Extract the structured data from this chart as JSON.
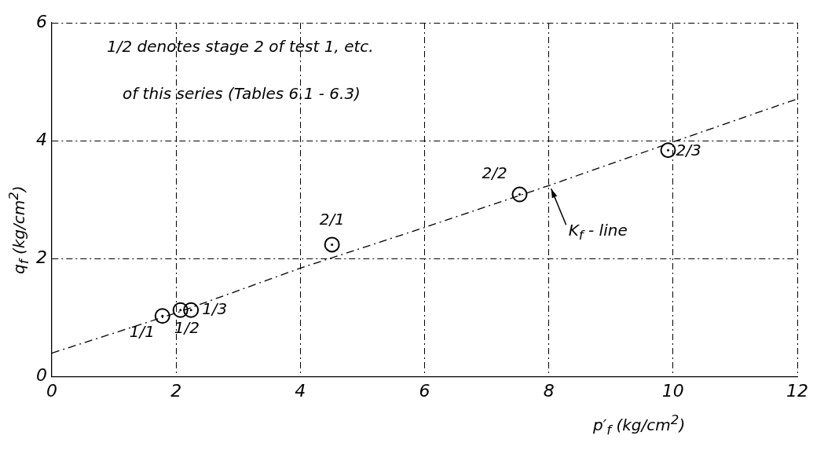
{
  "chart_data": {
    "type": "scatter",
    "xlabel": "p′$_{f}$ (kg/cm$^{2}$)",
    "ylabel": "q$_{f}$ (kg/cm$^{2}$)",
    "xlim": [
      0,
      12
    ],
    "xticks": [
      0,
      2,
      4,
      6,
      8,
      10,
      12
    ],
    "ylim": [
      0,
      6
    ],
    "yticks": [
      0,
      2,
      4,
      6
    ],
    "grid": true,
    "marker": "circle",
    "series": [
      {
        "color": "#000000",
        "x": [
          1.78,
          2.07,
          2.24,
          4.51,
          7.53,
          9.92
        ],
        "values": [
          1.03,
          1.13,
          1.13,
          2.24,
          3.09,
          3.84
        ]
      },
      {
        "type": "line",
        "color": "#000000",
        "line_style": "dashed",
        "marker": "none",
        "x": [
          0,
          2,
          4,
          6,
          8,
          10,
          12
        ],
        "values": [
          0.4,
          1.08,
          1.84,
          2.53,
          3.24,
          3.98,
          4.71
        ]
      }
    ],
    "annotations": [
      "1/2 denotes stage 2 of test 1, etc.",
      "of this series (Tables 6.1 - 6.3)",
      {
        "text": "1/1",
        "x": 1.78,
        "y": 1.03
      },
      {
        "text": "1/2",
        "x": 2.07,
        "y": 1.13
      },
      {
        "text": "1/3",
        "x": 2.24,
        "y": 1.13
      },
      {
        "text": "2/1",
        "x": 4.51,
        "y": 2.24
      },
      {
        "text": "2/2",
        "x": 7.53,
        "y": 3.09
      },
      {
        "text": "2/3",
        "x": 9.92,
        "y": 3.84
      },
      {
        "text": "K$_{f}$ - line",
        "x": 8,
        "y": 3.24
      }
    ]
  }
}
